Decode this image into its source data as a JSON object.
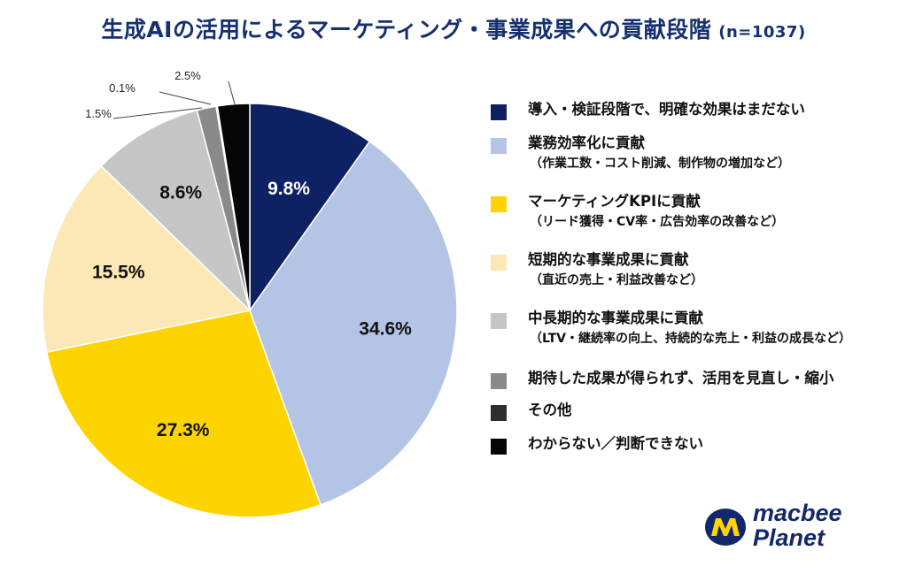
{
  "title": "生成AIの活用によるマーケティング・事業成果への貢献段階",
  "sample": "(n=1037)",
  "chart_data": {
    "type": "pie",
    "slices": [
      {
        "label": "導入・検証段階で、明確な効果はまだない",
        "sub": "",
        "value": 9.8,
        "display": "9.8%",
        "color": "#0e2163",
        "text_color": "#ffffff"
      },
      {
        "label": "業務効率化に貢献",
        "sub": "（作業工数・コスト削減、制作物の増加など）",
        "value": 34.6,
        "display": "34.6%",
        "color": "#b3c4e4",
        "text_color": "#111111"
      },
      {
        "label": "マーケティングKPIに貢献",
        "sub": "（リード獲得・CV率・広告効率の改善など）",
        "value": 27.3,
        "display": "27.3%",
        "color": "#fdd400",
        "text_color": "#111111"
      },
      {
        "label": "短期的な事業成果に貢献",
        "sub": "（直近の売上・利益改善など）",
        "value": 15.5,
        "display": "15.5%",
        "color": "#fbe8b4",
        "text_color": "#111111"
      },
      {
        "label": "中長期的な事業成果に貢献",
        "sub": "（LTV・継続率の向上、持続的な売上・利益の成長など）",
        "value": 8.6,
        "display": "8.6%",
        "color": "#c6c6c6",
        "text_color": "#111111"
      },
      {
        "label": "期待した成果が得られず、活用を見直し・縮小",
        "sub": "",
        "value": 1.5,
        "display": "1.5%",
        "color": "#8a8a8a",
        "text_color": "#111111"
      },
      {
        "label": "その他",
        "sub": "",
        "value": 0.1,
        "display": "0.1%",
        "color": "#2e2e2e",
        "text_color": "#111111"
      },
      {
        "label": "わからない／判断できない",
        "sub": "",
        "value": 2.5,
        "display": "2.5%",
        "color": "#050505",
        "text_color": "#111111"
      }
    ]
  },
  "brand": {
    "line1": "macbee",
    "line2": "Planet"
  }
}
